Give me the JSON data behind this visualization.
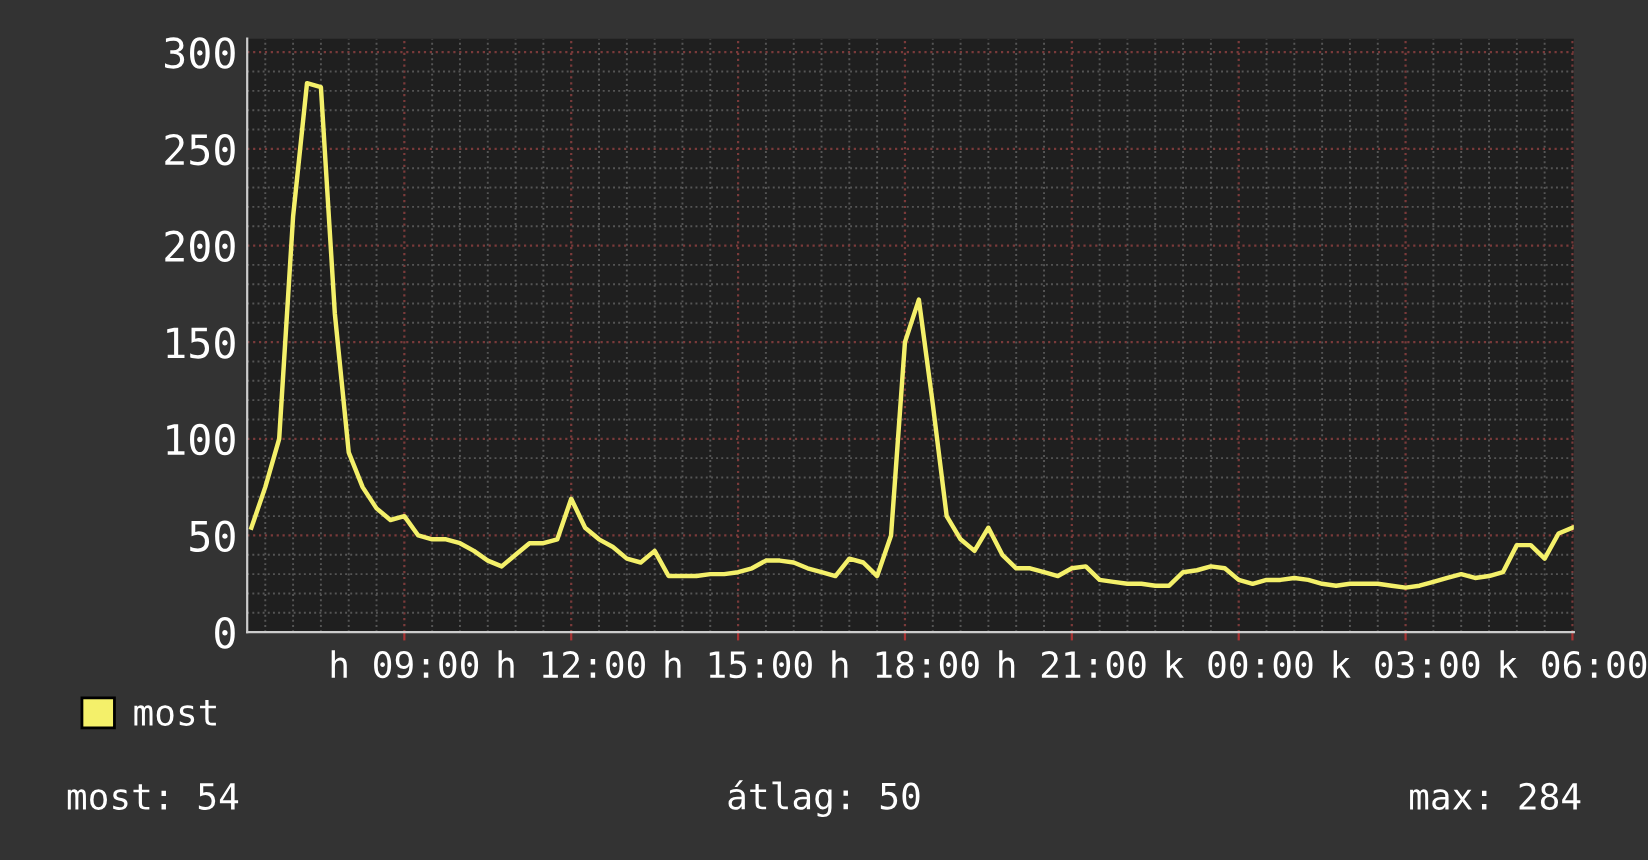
{
  "chart_data": {
    "type": "line",
    "categories": [
      null,
      null,
      null,
      null,
      null,
      null,
      null,
      null,
      null,
      null,
      null,
      "h 09:00",
      null,
      null,
      null,
      null,
      null,
      null,
      null,
      null,
      null,
      null,
      null,
      "h 12:00",
      null,
      null,
      null,
      null,
      null,
      null,
      null,
      null,
      null,
      null,
      null,
      "h 15:00",
      null,
      null,
      null,
      null,
      null,
      null,
      null,
      null,
      null,
      null,
      null,
      "h 18:00",
      null,
      null,
      null,
      null,
      null,
      null,
      null,
      null,
      null,
      null,
      null,
      "h 21:00",
      null,
      null,
      null,
      null,
      null,
      null,
      null,
      null,
      null,
      null,
      null,
      "k 00:00",
      null,
      null,
      null,
      null,
      null,
      null,
      null,
      null,
      null,
      null,
      null,
      "k 03:00",
      null,
      null,
      null,
      null,
      null,
      null,
      null,
      null,
      null,
      null,
      null,
      "k 06:00"
    ],
    "series": [
      {
        "name": "most",
        "color": "#f4f06a",
        "values": [
          54,
          75,
          100,
          215,
          284,
          282,
          165,
          93,
          75,
          64,
          58,
          60,
          50,
          48,
          48,
          46,
          42,
          37,
          34,
          40,
          46,
          46,
          48,
          69,
          54,
          48,
          44,
          38,
          36,
          42,
          29,
          29,
          29,
          30,
          30,
          31,
          33,
          37,
          37,
          36,
          33,
          31,
          29,
          38,
          36,
          29,
          50,
          150,
          172,
          118,
          60,
          48,
          42,
          54,
          40,
          33,
          33,
          31,
          29,
          33,
          34,
          27,
          26,
          25,
          25,
          24,
          24,
          31,
          32,
          34,
          33,
          27,
          25,
          27,
          27,
          28,
          27,
          25,
          24,
          25,
          25,
          25,
          24,
          23,
          24,
          26,
          28,
          30,
          28,
          29,
          31,
          45,
          45,
          38,
          51,
          54
        ]
      }
    ],
    "ylim": [
      0,
      307
    ],
    "yticks": [
      0,
      50,
      100,
      150,
      200,
      250,
      300
    ],
    "grid": true,
    "legend": "bottom left",
    "annotations": [
      "most: 54",
      "átlag: 50",
      "max: 284"
    ]
  }
}
